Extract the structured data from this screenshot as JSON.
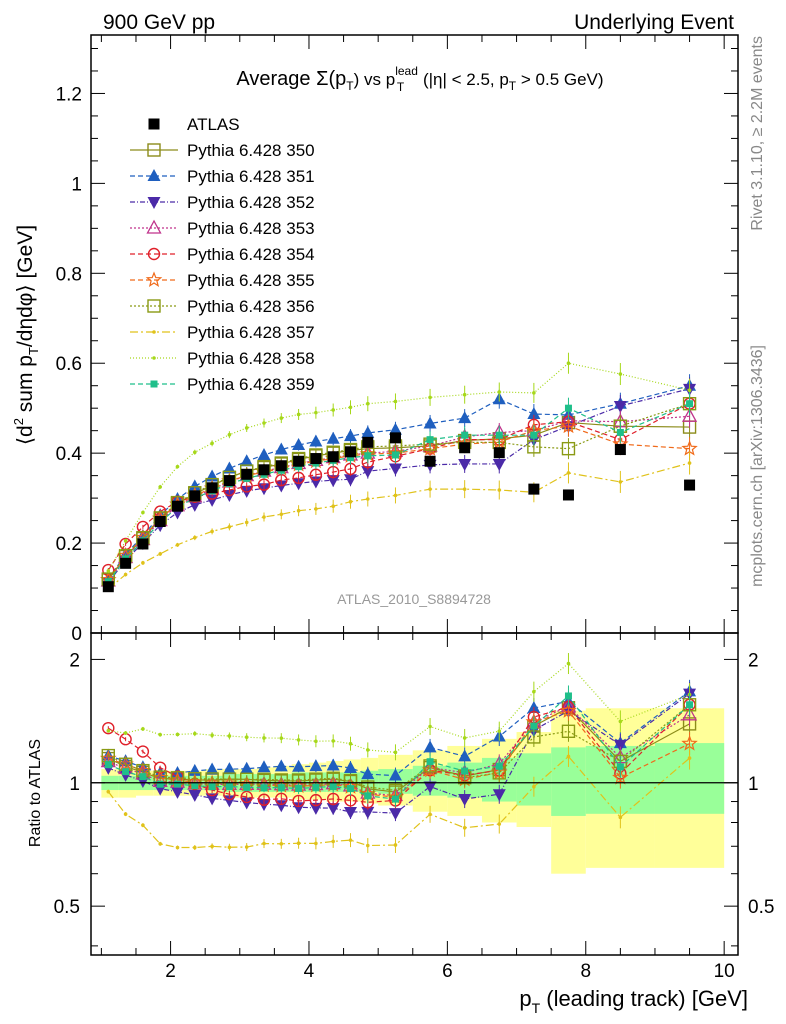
{
  "header": {
    "left": "900 GeV pp",
    "right": "Underlying Event"
  },
  "side_notes": {
    "rivet": "Rivet 3.1.10, ≥ 2.2M events",
    "mcplots": "mcplots.cern.ch [arXiv:1306.3436]"
  },
  "analysis_id": "ATLAS_2010_S8894728",
  "chart_data": {
    "type": "scatter",
    "title": {
      "prefix": "Average ",
      "sigma": "Σ(p",
      "sigma_sub": "T",
      "sigma_close": ")",
      "vs": " vs p",
      "lead_sup": "lead",
      "lead_sub": "T",
      "cuts": " (|η| < 2.5, p",
      "cuts_sub": "T",
      "cuts_end": " > 0.5 GeV)"
    },
    "ylabel_main": {
      "part1": "⟨d",
      "sup2": "2",
      "part2": " sum p",
      "subT": "T",
      "part3": "/dηdφ⟩ [GeV]"
    },
    "ylabel_ratio": "Ratio to ATLAS",
    "xlabel": {
      "p": "p",
      "sub": "T",
      "rest": " (leading track) [GeV]"
    },
    "xlim": [
      0.85,
      10.2
    ],
    "ylim_main": [
      0,
      1.33
    ],
    "ylim_ratio": [
      0.38,
      2.32
    ],
    "ratio_log": true,
    "xticks": [
      "2",
      "4",
      "6",
      "8",
      "10"
    ],
    "yticks_main": [
      "0",
      "0.2",
      "0.4",
      "0.6",
      "0.8",
      "1",
      "1.2"
    ],
    "yticks_ratio": [
      "0.5",
      "1",
      "2"
    ],
    "x": [
      1.1,
      1.35,
      1.6,
      1.85,
      2.1,
      2.35,
      2.6,
      2.85,
      3.1,
      3.35,
      3.6,
      3.85,
      4.1,
      4.35,
      4.6,
      4.85,
      5.25,
      5.75,
      6.25,
      6.75,
      7.25,
      7.75,
      8.5,
      9.5
    ],
    "data": {
      "name": "ATLAS",
      "color": "#000000",
      "values": [
        0.103,
        0.155,
        0.198,
        0.248,
        0.282,
        0.305,
        0.323,
        0.339,
        0.353,
        0.363,
        0.372,
        0.382,
        0.388,
        0.392,
        0.403,
        0.424,
        0.434,
        0.382,
        0.412,
        0.401,
        0.32,
        0.307,
        0.408,
        0.329
      ]
    },
    "band": {
      "x_edges": [
        1.0,
        1.25,
        1.5,
        1.75,
        2.0,
        2.25,
        2.5,
        2.75,
        3.0,
        3.25,
        3.5,
        3.75,
        4.0,
        4.25,
        4.5,
        4.75,
        5.0,
        5.5,
        6.0,
        6.5,
        7.0,
        7.5,
        8.0,
        9.0,
        10.0
      ],
      "inner_lo": [
        0.96,
        0.96,
        0.96,
        0.96,
        0.96,
        0.96,
        0.96,
        0.95,
        0.95,
        0.95,
        0.95,
        0.95,
        0.95,
        0.95,
        0.95,
        0.95,
        0.94,
        0.93,
        0.92,
        0.9,
        0.88,
        0.83,
        0.84,
        0.84
      ],
      "inner_hi": [
        1.04,
        1.04,
        1.04,
        1.04,
        1.04,
        1.04,
        1.04,
        1.05,
        1.05,
        1.05,
        1.05,
        1.06,
        1.06,
        1.06,
        1.06,
        1.07,
        1.08,
        1.1,
        1.12,
        1.15,
        1.18,
        1.22,
        1.23,
        1.25
      ],
      "outer_lo": [
        0.92,
        0.92,
        0.93,
        0.93,
        0.93,
        0.93,
        0.93,
        0.92,
        0.92,
        0.92,
        0.92,
        0.91,
        0.91,
        0.9,
        0.9,
        0.89,
        0.88,
        0.85,
        0.83,
        0.8,
        0.78,
        0.6,
        0.62,
        0.62
      ],
      "outer_hi": [
        1.08,
        1.08,
        1.07,
        1.07,
        1.07,
        1.07,
        1.08,
        1.08,
        1.08,
        1.09,
        1.1,
        1.11,
        1.12,
        1.13,
        1.14,
        1.15,
        1.17,
        1.2,
        1.23,
        1.28,
        1.33,
        1.5,
        1.52,
        1.52
      ]
    },
    "series": [
      {
        "name": "Pythia 6.428 350",
        "color": "#8c8c1a",
        "dash": "",
        "marker": "square-open",
        "values": [
          0.118,
          0.17,
          0.21,
          0.254,
          0.288,
          0.31,
          0.328,
          0.346,
          0.36,
          0.368,
          0.376,
          0.386,
          0.394,
          0.4,
          0.406,
          0.41,
          0.412,
          0.416,
          0.428,
          0.432,
          0.44,
          0.468,
          0.46,
          0.458
        ]
      },
      {
        "name": "Pythia 6.428 351",
        "color": "#1f5fbf",
        "dash": "5,3",
        "marker": "triangle-up",
        "values": [
          0.12,
          0.175,
          0.216,
          0.262,
          0.298,
          0.326,
          0.348,
          0.366,
          0.382,
          0.396,
          0.408,
          0.418,
          0.426,
          0.432,
          0.438,
          0.445,
          0.452,
          0.466,
          0.478,
          0.52,
          0.487,
          0.485,
          0.51,
          0.55
        ]
      },
      {
        "name": "Pythia 6.428 352",
        "color": "#4b2aa8",
        "dash": "5,2,1,2",
        "marker": "triangle-down",
        "values": [
          0.112,
          0.162,
          0.2,
          0.24,
          0.268,
          0.285,
          0.296,
          0.307,
          0.316,
          0.322,
          0.328,
          0.333,
          0.337,
          0.34,
          0.342,
          0.36,
          0.366,
          0.374,
          0.376,
          0.376,
          0.43,
          0.46,
          0.505,
          0.543
        ]
      },
      {
        "name": "Pythia 6.428 353",
        "color": "#c0338c",
        "dash": "2,2",
        "marker": "triangle-open",
        "values": [
          0.116,
          0.168,
          0.208,
          0.25,
          0.283,
          0.303,
          0.32,
          0.336,
          0.35,
          0.36,
          0.368,
          0.377,
          0.384,
          0.39,
          0.396,
          0.4,
          0.404,
          0.416,
          0.436,
          0.446,
          0.45,
          0.472,
          0.47,
          0.482
        ]
      },
      {
        "name": "Pythia 6.428 354",
        "color": "#e0202a",
        "dash": "5,3",
        "marker": "circle-open",
        "values": [
          0.14,
          0.198,
          0.236,
          0.27,
          0.292,
          0.303,
          0.31,
          0.318,
          0.326,
          0.33,
          0.34,
          0.345,
          0.352,
          0.358,
          0.365,
          0.38,
          0.393,
          0.41,
          0.43,
          0.43,
          0.463,
          0.47,
          0.43,
          0.51
        ]
      },
      {
        "name": "Pythia 6.428 355",
        "color": "#f06a1a",
        "dash": "5,3",
        "marker": "star-open",
        "values": [
          0.118,
          0.172,
          0.212,
          0.255,
          0.286,
          0.306,
          0.322,
          0.338,
          0.35,
          0.358,
          0.366,
          0.375,
          0.382,
          0.388,
          0.394,
          0.398,
          0.4,
          0.41,
          0.42,
          0.425,
          0.45,
          0.46,
          0.42,
          0.41
        ]
      },
      {
        "name": "Pythia 6.428 356",
        "color": "#8a9a14",
        "dash": "2,2",
        "marker": "square-open",
        "values": [
          0.12,
          0.172,
          0.212,
          0.256,
          0.29,
          0.312,
          0.33,
          0.346,
          0.36,
          0.37,
          0.378,
          0.388,
          0.396,
          0.402,
          0.408,
          0.414,
          0.416,
          0.42,
          0.424,
          0.424,
          0.414,
          0.41,
          0.46,
          0.51
        ]
      },
      {
        "name": "Pythia 6.428 357",
        "color": "#e0c21a",
        "dash": "8,3,2,3",
        "marker": "dot",
        "values": [
          0.098,
          0.13,
          0.156,
          0.176,
          0.196,
          0.212,
          0.226,
          0.236,
          0.246,
          0.258,
          0.264,
          0.272,
          0.276,
          0.282,
          0.292,
          0.298,
          0.306,
          0.32,
          0.32,
          0.318,
          0.313,
          0.356,
          0.336,
          0.378
        ]
      },
      {
        "name": "Pythia 6.428 358",
        "color": "#a6d81a",
        "dash": "1,2",
        "marker": "dot",
        "values": [
          0.138,
          0.205,
          0.268,
          0.325,
          0.37,
          0.402,
          0.422,
          0.441,
          0.456,
          0.467,
          0.478,
          0.486,
          0.49,
          0.496,
          0.502,
          0.51,
          0.515,
          0.524,
          0.53,
          0.536,
          0.534,
          0.6,
          0.576,
          0.54
        ]
      },
      {
        "name": "Pythia 6.428 359",
        "color": "#1fbf8a",
        "dash": "5,3",
        "marker": "square-small",
        "values": [
          0.114,
          0.165,
          0.205,
          0.246,
          0.28,
          0.3,
          0.316,
          0.332,
          0.344,
          0.353,
          0.362,
          0.37,
          0.378,
          0.384,
          0.39,
          0.394,
          0.396,
          0.43,
          0.44,
          0.44,
          0.44,
          0.5,
          0.446,
          0.51
        ]
      }
    ]
  }
}
